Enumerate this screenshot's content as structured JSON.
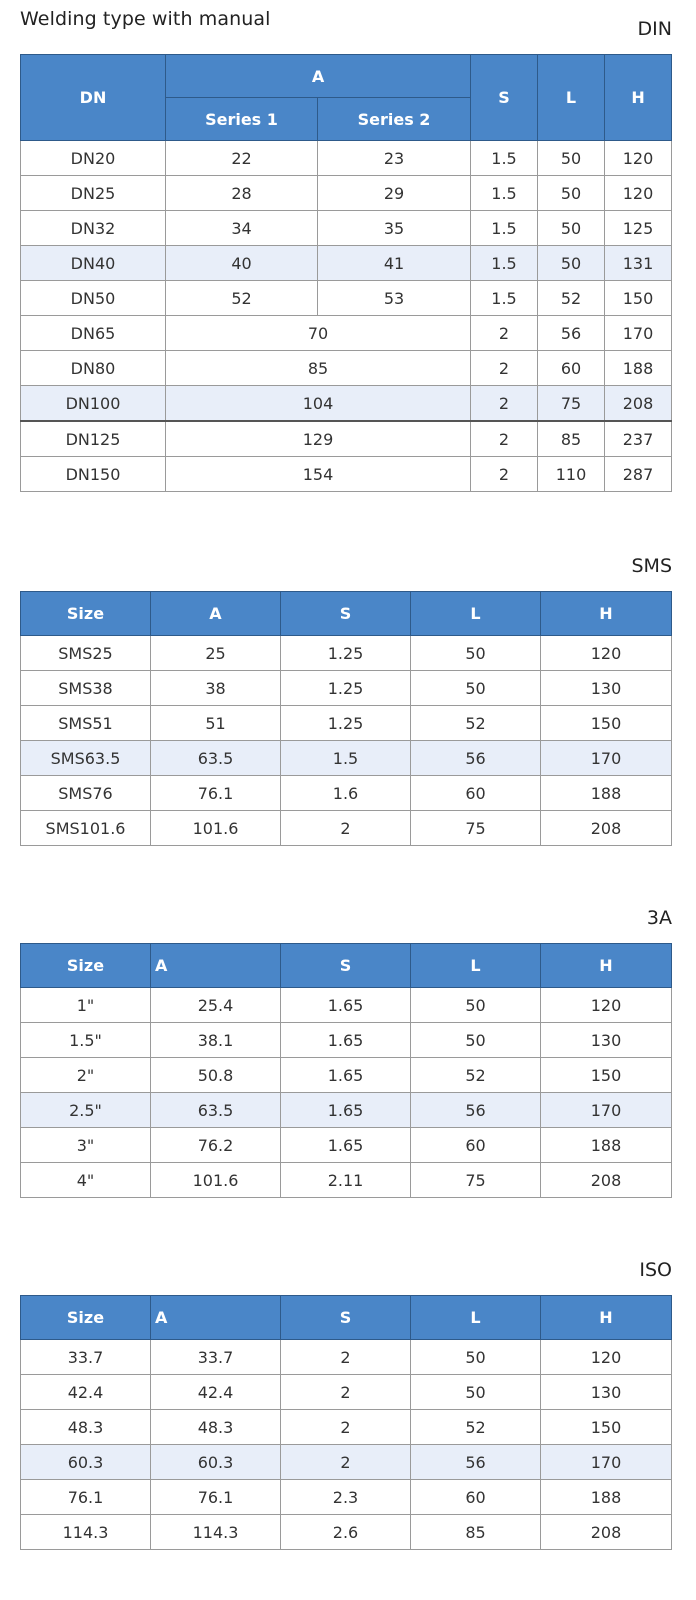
{
  "page_title": "Welding type with manual",
  "din": {
    "label": "DIN",
    "headers": {
      "dn": "DN",
      "a": "A",
      "series1": "Series 1",
      "series2": "Series 2",
      "s": "S",
      "l": "L",
      "h": "H"
    },
    "rows": [
      {
        "dn": "DN20",
        "a1": "22",
        "a2": "23",
        "s": "1.5",
        "l": "50",
        "h": "120"
      },
      {
        "dn": "DN25",
        "a1": "28",
        "a2": "29",
        "s": "1.5",
        "l": "50",
        "h": "120"
      },
      {
        "dn": "DN32",
        "a1": "34",
        "a2": "35",
        "s": "1.5",
        "l": "50",
        "h": "125"
      },
      {
        "dn": "DN40",
        "a1": "40",
        "a2": "41",
        "s": "1.5",
        "l": "50",
        "h": "131"
      },
      {
        "dn": "DN50",
        "a1": "52",
        "a2": "53",
        "s": "1.5",
        "l": "52",
        "h": "150"
      },
      {
        "dn": "DN65",
        "a": "70",
        "s": "2",
        "l": "56",
        "h": "170"
      },
      {
        "dn": "DN80",
        "a": "85",
        "s": "2",
        "l": "60",
        "h": "188"
      },
      {
        "dn": "DN100",
        "a": "104",
        "s": "2",
        "l": "75",
        "h": "208"
      },
      {
        "dn": "DN125",
        "a": "129",
        "s": "2",
        "l": "85",
        "h": "237"
      },
      {
        "dn": "DN150",
        "a": "154",
        "s": "2",
        "l": "110",
        "h": "287"
      }
    ]
  },
  "sms": {
    "label": "SMS",
    "headers": [
      "Size",
      "A",
      "S",
      "L",
      "H"
    ],
    "rows": [
      [
        "SMS25",
        "25",
        "1.25",
        "50",
        "120"
      ],
      [
        "SMS38",
        "38",
        "1.25",
        "50",
        "130"
      ],
      [
        "SMS51",
        "51",
        "1.25",
        "52",
        "150"
      ],
      [
        "SMS63.5",
        "63.5",
        "1.5",
        "56",
        "170"
      ],
      [
        "SMS76",
        "76.1",
        "1.6",
        "60",
        "188"
      ],
      [
        "SMS101.6",
        "101.6",
        "2",
        "75",
        "208"
      ]
    ]
  },
  "a3": {
    "label": "3A",
    "headers": [
      "Size",
      "A",
      "S",
      "L",
      "H"
    ],
    "rows": [
      [
        "1\"",
        "25.4",
        "1.65",
        "50",
        "120"
      ],
      [
        "1.5\"",
        "38.1",
        "1.65",
        "50",
        "130"
      ],
      [
        "2\"",
        "50.8",
        "1.65",
        "52",
        "150"
      ],
      [
        "2.5\"",
        "63.5",
        "1.65",
        "56",
        "170"
      ],
      [
        "3\"",
        "76.2",
        "1.65",
        "60",
        "188"
      ],
      [
        "4\"",
        "101.6",
        "2.11",
        "75",
        "208"
      ]
    ]
  },
  "iso": {
    "label": "ISO",
    "headers": [
      "Size",
      "A",
      "S",
      "L",
      "H"
    ],
    "rows": [
      [
        "33.7",
        "33.7",
        "2",
        "50",
        "120"
      ],
      [
        "42.4",
        "42.4",
        "2",
        "50",
        "130"
      ],
      [
        "48.3",
        "48.3",
        "2",
        "52",
        "150"
      ],
      [
        "60.3",
        "60.3",
        "2",
        "56",
        "170"
      ],
      [
        "76.1",
        "76.1",
        "2.3",
        "60",
        "188"
      ],
      [
        "114.3",
        "114.3",
        "2.6",
        "85",
        "208"
      ]
    ]
  }
}
